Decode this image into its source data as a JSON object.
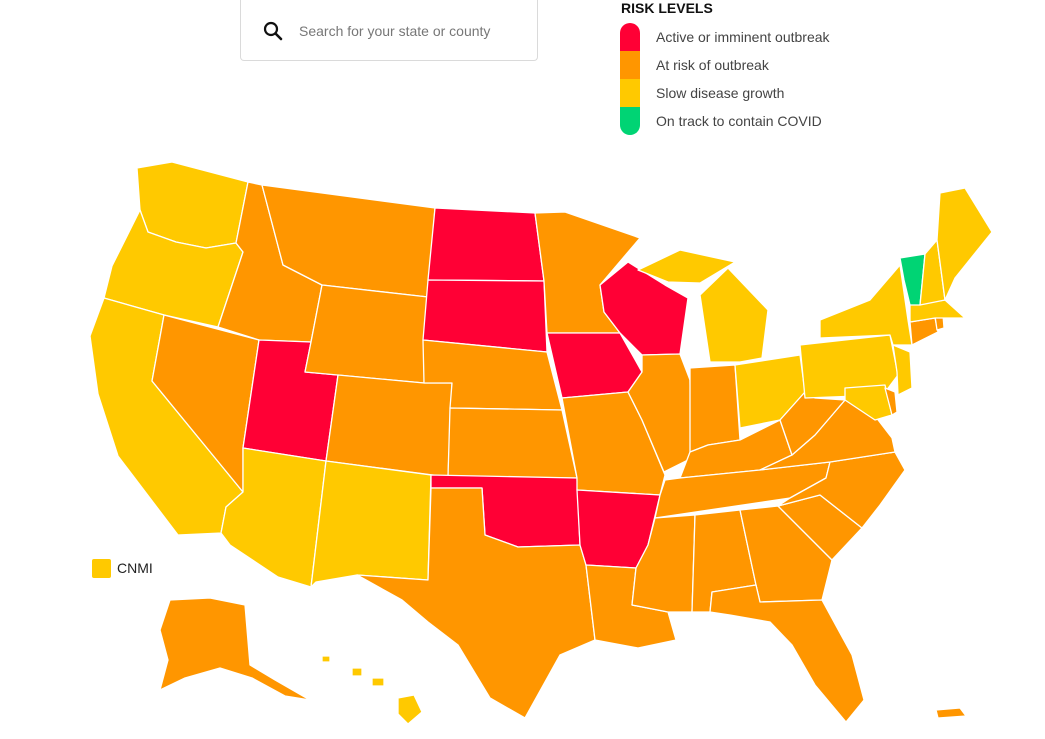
{
  "search": {
    "placeholder": "Search for your state or county",
    "icon": "search-icon"
  },
  "legend": {
    "title": "RISK LEVELS",
    "levels": [
      {
        "key": "red",
        "label": "Active or imminent outbreak",
        "color": "#ff0035"
      },
      {
        "key": "orange",
        "label": "At risk of outbreak",
        "color": "#ff9600"
      },
      {
        "key": "yellow",
        "label": "Slow disease growth",
        "color": "#ffc900"
      },
      {
        "key": "green",
        "label": "On track to contain COVID",
        "color": "#00d474"
      }
    ]
  },
  "territories": {
    "cnmi": {
      "label": "CNMI",
      "level": "yellow"
    }
  },
  "states": {
    "WA": "yellow",
    "OR": "yellow",
    "CA": "yellow",
    "ID": "orange",
    "NV": "orange",
    "UT": "red",
    "AZ": "yellow",
    "MT": "orange",
    "WY": "orange",
    "CO": "orange",
    "NM": "yellow",
    "ND": "red",
    "SD": "red",
    "NE": "orange",
    "KS": "orange",
    "OK": "red",
    "TX": "orange",
    "MN": "orange",
    "IA": "red",
    "MO": "orange",
    "AR": "red",
    "LA": "orange",
    "WI": "red",
    "IL": "orange",
    "MI": "yellow",
    "IN": "orange",
    "OH": "yellow",
    "KY": "orange",
    "TN": "orange",
    "MS": "orange",
    "AL": "orange",
    "GA": "orange",
    "FL": "orange",
    "SC": "orange",
    "NC": "orange",
    "VA": "orange",
    "WV": "orange",
    "PA": "yellow",
    "NY": "yellow",
    "VT": "green",
    "NH": "yellow",
    "ME": "yellow",
    "MA": "yellow",
    "CT": "orange",
    "RI": "orange",
    "NJ": "yellow",
    "DE": "orange",
    "MD": "yellow",
    "AK": "orange",
    "HI": "yellow",
    "PR": "orange"
  }
}
